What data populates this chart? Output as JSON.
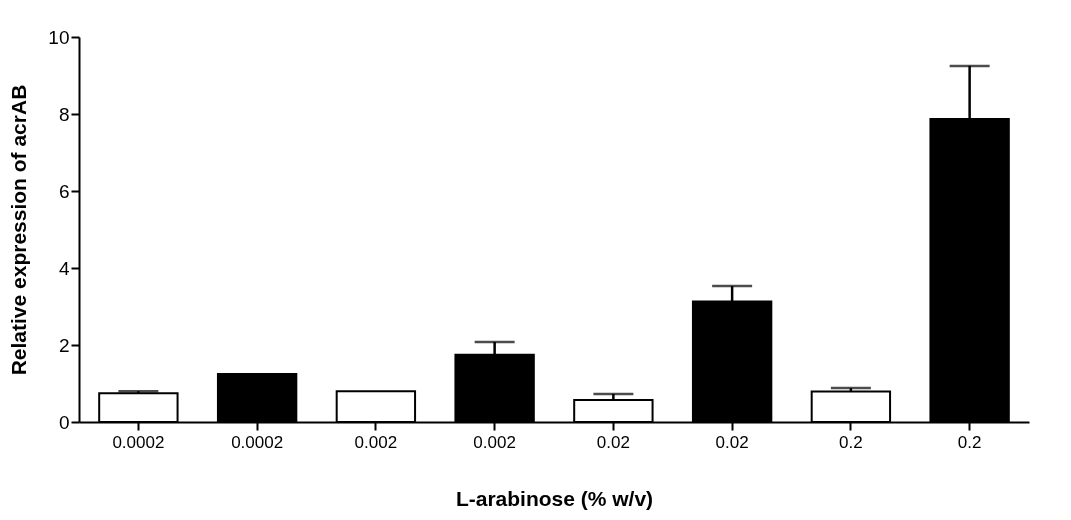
{
  "chart_data": {
    "type": "bar",
    "xlabel": "L-arabinose (% w/v)",
    "ylabel": "Relative expression of acrAB",
    "categories": [
      "0.0002",
      "0.0002",
      "0.002",
      "0.002",
      "0.02",
      "0.02",
      "0.2",
      "0.2"
    ],
    "values": [
      0.75,
      1.25,
      0.8,
      1.75,
      0.57,
      3.13,
      0.79,
      7.87
    ],
    "colors": [
      "#ffffff",
      "#000000",
      "#ffffff",
      "#000000",
      "#ffffff",
      "#000000",
      "#ffffff",
      "#000000"
    ],
    "errors": [
      [
        0.75,
        0.8
      ],
      null,
      null,
      [
        1.75,
        2.08
      ],
      [
        0.57,
        0.73
      ],
      [
        3.13,
        3.53
      ],
      [
        0.79,
        0.88
      ],
      [
        7.87,
        9.25
      ]
    ],
    "ylim": [
      0,
      10
    ],
    "yticks": [
      0,
      2,
      4,
      6,
      8,
      10
    ],
    "grid": false
  }
}
